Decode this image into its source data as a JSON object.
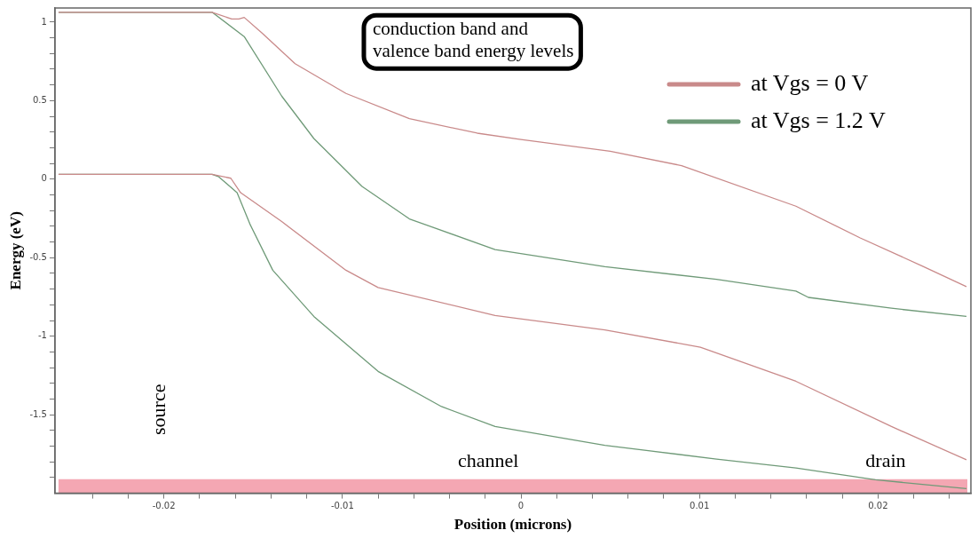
{
  "chart_data": {
    "type": "line",
    "xlabel": "Position (microns)",
    "ylabel": "Energy (eV)",
    "xlim": [
      -0.0261,
      0.0252
    ],
    "ylim": [
      -2,
      1.09
    ],
    "xticks": [
      {
        "value": -0.024,
        "label": null
      },
      {
        "value": -0.022,
        "label": null
      },
      -0.02,
      {
        "value": -0.018,
        "label": null
      },
      {
        "value": -0.016,
        "label": null
      },
      {
        "value": -0.014,
        "label": null
      },
      {
        "value": -0.012,
        "label": null
      },
      -0.01,
      {
        "value": -0.008,
        "label": null
      },
      {
        "value": -0.006,
        "label": null
      },
      {
        "value": -0.004,
        "label": null
      },
      {
        "value": -0.002,
        "label": null
      },
      0,
      {
        "value": 0.002,
        "label": null
      },
      {
        "value": 0.004,
        "label": null
      },
      {
        "value": 0.006,
        "label": null
      },
      {
        "value": 0.008,
        "label": null
      },
      0.01,
      {
        "value": 0.012,
        "label": null
      },
      {
        "value": 0.014,
        "label": null
      },
      {
        "value": 0.016,
        "label": null
      },
      {
        "value": 0.018,
        "label": null
      },
      0.02,
      {
        "value": 0.022,
        "label": null
      },
      {
        "value": 0.024,
        "label": null
      }
    ],
    "yticks": [
      1,
      {
        "value": 0.9,
        "label": null
      },
      {
        "value": 0.8,
        "label": null
      },
      {
        "value": 0.7,
        "label": null
      },
      {
        "value": 0.6,
        "label": null
      },
      0.5,
      {
        "value": 0.4,
        "label": null
      },
      {
        "value": 0.3,
        "label": null
      },
      {
        "value": 0.2,
        "label": null
      },
      {
        "value": 0.1,
        "label": null
      },
      0,
      {
        "value": -0.1,
        "label": null
      },
      {
        "value": -0.2,
        "label": null
      },
      {
        "value": -0.3,
        "label": null
      },
      {
        "value": -0.4,
        "label": null
      },
      -0.5,
      {
        "value": -0.6,
        "label": null
      },
      {
        "value": -0.7,
        "label": null
      },
      {
        "value": -0.8,
        "label": null
      },
      {
        "value": -0.9,
        "label": null
      },
      -1,
      {
        "value": -1.1,
        "label": null
      },
      {
        "value": -1.2,
        "label": null
      },
      {
        "value": -1.3,
        "label": null
      },
      {
        "value": -1.4,
        "label": null
      },
      -1.5,
      {
        "value": -1.6,
        "label": null
      },
      {
        "value": -1.7,
        "label": null
      },
      {
        "value": -1.8,
        "label": null
      },
      {
        "value": -1.9,
        "label": null
      }
    ],
    "grid": false,
    "marker": "none",
    "line_style": "solid",
    "legend": "top right",
    "series": [
      {
        "name": "at Vgs = 0 V",
        "color": "#c98a8a",
        "x": [
          -0.0259,
          -0.02,
          -0.0173,
          -0.0162,
          -0.0158,
          -0.0155,
          -0.0145,
          -0.01265,
          -0.0098,
          -0.00625,
          -0.00245,
          0,
          0.005,
          0.009,
          0.0154,
          0.019,
          0.02255,
          0.02495
        ],
        "values": [
          1.063,
          1.063,
          1.063,
          1.02,
          1.02,
          1.03,
          0.93,
          0.735,
          0.546,
          0.385,
          0.293,
          0.253,
          0.178,
          0.086,
          -0.172,
          -0.374,
          -0.557,
          -0.684
        ]
      },
      {
        "name": "at Vgs = 1.2 V",
        "color": "#6f9a78",
        "x": [
          -0.0259,
          -0.0173,
          -0.0155,
          -0.0134,
          -0.0116,
          -0.0089,
          -0.00625,
          -0.00145,
          0.0047,
          0.01095,
          0.0154,
          0.0161,
          0.02075,
          0.02495
        ],
        "values": [
          1.063,
          1.063,
          0.908,
          0.529,
          0.259,
          -0.046,
          -0.253,
          -0.448,
          -0.557,
          -0.638,
          -0.713,
          -0.753,
          -0.822,
          -0.874
        ]
      },
      {
        "color": "#c98a8a",
        "x": [
          -0.0259,
          -0.02,
          -0.0173,
          -0.01625,
          -0.0157,
          -0.0134,
          -0.0098,
          -0.008,
          -0.00145,
          0.0047,
          0.01005,
          0.0154,
          0.02075,
          0.02495
        ],
        "values": [
          0.031,
          0.031,
          0.031,
          0.006,
          -0.086,
          -0.27,
          -0.58,
          -0.69,
          -0.868,
          -0.96,
          -1.07,
          -1.287,
          -1.575,
          -1.787
        ]
      },
      {
        "color": "#6f9a78",
        "x": [
          -0.0259,
          -0.0173,
          -0.01695,
          -0.0159,
          -0.01515,
          -0.0139,
          -0.0116,
          -0.008,
          -0.00445,
          -0.00145,
          0.0047,
          0.01095,
          0.0154,
          0.01985,
          0.02495
        ],
        "values": [
          0.031,
          0.031,
          0.017,
          -0.086,
          -0.293,
          -0.58,
          -0.874,
          -1.224,
          -1.448,
          -1.575,
          -1.695,
          -1.782,
          -1.839,
          -1.914,
          -1.971
        ]
      }
    ],
    "bands": [
      {
        "axis": "y",
        "from": -2,
        "to": -1.91,
        "color": "#f4a7b3"
      }
    ],
    "annotations": [
      "conduction band and valence band energy levels",
      "source",
      "channel",
      "drain"
    ]
  }
}
